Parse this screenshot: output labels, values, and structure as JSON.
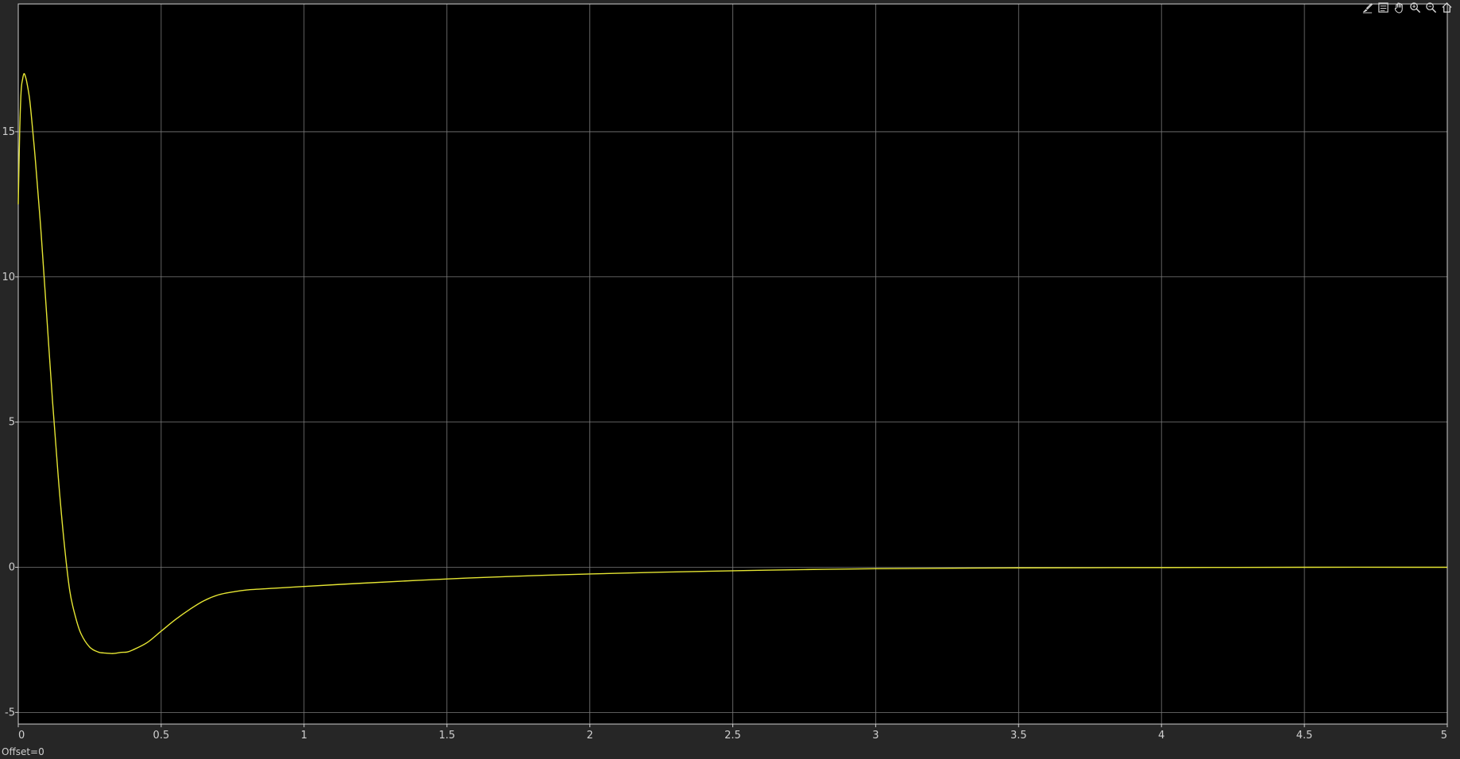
{
  "toolbar": {
    "icons": [
      "brush-icon",
      "legend-icon",
      "pan-hand-icon",
      "zoom-in-icon",
      "zoom-out-icon",
      "home-icon"
    ]
  },
  "status": {
    "offset_text": "Offset=0"
  },
  "colors": {
    "background": "#000000",
    "frame_background": "#262626",
    "grid": "#7a7a7a",
    "axis": "#cfcfcf",
    "trace": "#e6e633"
  },
  "chart_data": {
    "type": "line",
    "title": "",
    "xlabel": "",
    "ylabel": "",
    "xlim": [
      0,
      5
    ],
    "ylim": [
      -5.4,
      19.4
    ],
    "grid": true,
    "xticks": [
      0,
      0.5,
      1,
      1.5,
      2,
      2.5,
      3,
      3.5,
      4,
      4.5,
      5
    ],
    "xtick_labels": [
      "0",
      "0.5",
      "1",
      "1.5",
      "2",
      "2.5",
      "3",
      "3.5",
      "4",
      "4.5",
      "5"
    ],
    "yticks": [
      -5,
      0,
      5,
      10,
      15
    ],
    "ytick_labels": [
      "-5",
      "0",
      "5",
      "10",
      "15"
    ],
    "series": [
      {
        "x": [
          0,
          0.005,
          0.01,
          0.015,
          0.02,
          0.025,
          0.03,
          0.04,
          0.05,
          0.06,
          0.08,
          0.1,
          0.12,
          0.14,
          0.16,
          0.18,
          0.2,
          0.22,
          0.25,
          0.28,
          0.3,
          0.33,
          0.36,
          0.38,
          0.4,
          0.45,
          0.5,
          0.55,
          0.6,
          0.65,
          0.7,
          0.75,
          0.8,
          0.9,
          1.0,
          1.2,
          1.4,
          1.6,
          1.8,
          2.0,
          2.25,
          2.5,
          2.75,
          3.0,
          3.5,
          4.0,
          4.5,
          5.0
        ],
        "y": [
          12.5,
          15.0,
          16.4,
          16.8,
          17.0,
          16.9,
          16.7,
          16.1,
          15.1,
          14.0,
          11.5,
          8.6,
          5.7,
          3.1,
          0.9,
          -0.8,
          -1.7,
          -2.3,
          -2.75,
          -2.92,
          -2.95,
          -2.97,
          -2.93,
          -2.92,
          -2.85,
          -2.6,
          -2.2,
          -1.8,
          -1.45,
          -1.15,
          -0.95,
          -0.85,
          -0.78,
          -0.72,
          -0.66,
          -0.55,
          -0.45,
          -0.36,
          -0.29,
          -0.23,
          -0.17,
          -0.12,
          -0.08,
          -0.05,
          -0.02,
          -0.01,
          0.0,
          0.0
        ]
      }
    ]
  }
}
